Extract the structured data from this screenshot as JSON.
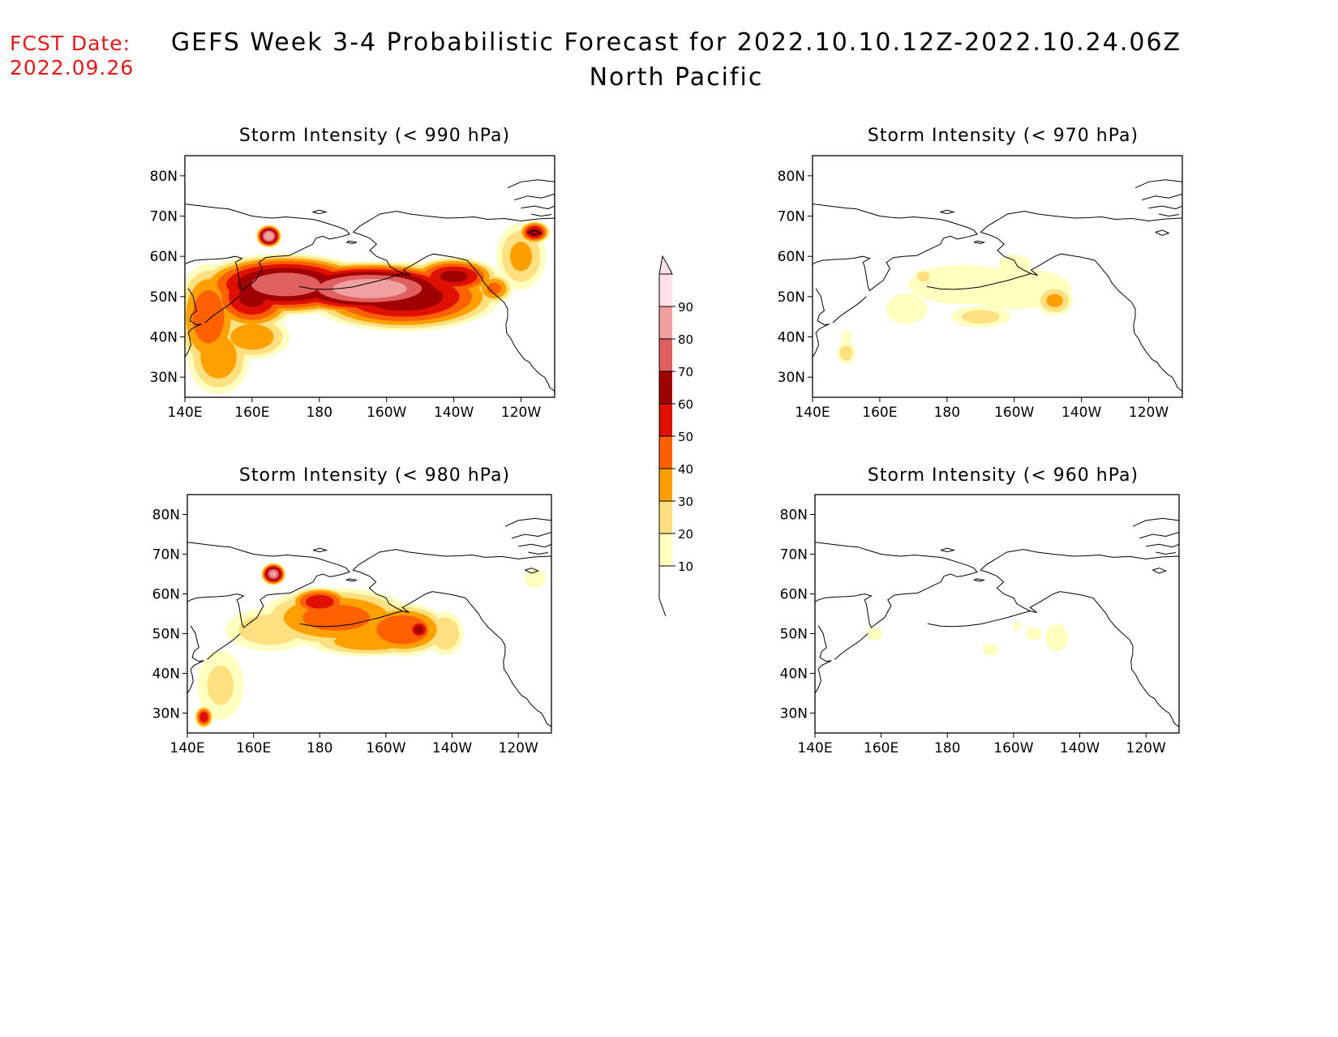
{
  "fcst_label": "FCST Date:",
  "fcst_date": "2022.09.26",
  "title": "GEFS Week 3-4 Probabilistic Forecast for 2022.10.10.12Z-2022.10.24.06Z",
  "subtitle": "North Pacific",
  "lat_ticks": [
    "80N",
    "70N",
    "60N",
    "50N",
    "40N",
    "30N"
  ],
  "lon_ticks": [
    "140E",
    "160E",
    "180",
    "160W",
    "140W",
    "120W"
  ],
  "panels": [
    {
      "title": "Storm Intensity (< 990 hPa)",
      "level": "990"
    },
    {
      "title": "Storm Intensity (< 970 hPa)",
      "level": "970"
    },
    {
      "title": "Storm Intensity (< 980 hPa)",
      "level": "980"
    },
    {
      "title": "Storm Intensity (< 960 hPa)",
      "level": "960"
    }
  ],
  "colorbar": {
    "levels": [
      "10",
      "20",
      "30",
      "40",
      "50",
      "60",
      "70",
      "80",
      "90"
    ],
    "colors": [
      "#ffffc0",
      "#ffe080",
      "#ffa000",
      "#ff6000",
      "#e01000",
      "#a00000",
      "#e06060",
      "#f0a0a0",
      "#ffe0e8"
    ]
  },
  "map_data": {
    "extent": {
      "lon": [
        140,
        250
      ],
      "lat": [
        25,
        85
      ]
    },
    "colormap": [
      {
        "min": 10,
        "color": "#ffffc0"
      },
      {
        "min": 20,
        "color": "#ffe080"
      },
      {
        "min": 30,
        "color": "#ffa000"
      },
      {
        "min": 40,
        "color": "#ff6000"
      },
      {
        "min": 50,
        "color": "#e01000"
      },
      {
        "min": 60,
        "color": "#a00000"
      },
      {
        "min": 70,
        "color": "#e06060"
      },
      {
        "min": 80,
        "color": "#f0a0a0"
      },
      {
        "min": 90,
        "color": "#ffe0e8"
      }
    ],
    "fields": {
      "990": [
        {
          "lon": 195,
          "lat": 52,
          "rx": 32,
          "ry": 7,
          "v": 85
        },
        {
          "lon": 170,
          "lat": 53,
          "rx": 28,
          "ry": 8,
          "v": 75
        },
        {
          "lon": 205,
          "lat": 50,
          "rx": 30,
          "ry": 9,
          "v": 65
        },
        {
          "lon": 160,
          "lat": 50,
          "rx": 14,
          "ry": 9,
          "v": 60
        },
        {
          "lon": 147,
          "lat": 45,
          "rx": 10,
          "ry": 14,
          "v": 45
        },
        {
          "lon": 150,
          "lat": 35,
          "rx": 10,
          "ry": 10,
          "v": 35
        },
        {
          "lon": 160,
          "lat": 40,
          "rx": 12,
          "ry": 6,
          "v": 35
        },
        {
          "lon": 240,
          "lat": 60,
          "rx": 8,
          "ry": 9,
          "v": 30
        },
        {
          "lon": 165,
          "lat": 65,
          "rx": 4,
          "ry": 3,
          "v": 85
        },
        {
          "lon": 220,
          "lat": 55,
          "rx": 14,
          "ry": 5,
          "v": 60
        },
        {
          "lon": 244,
          "lat": 66,
          "rx": 5,
          "ry": 3,
          "v": 60
        },
        {
          "lon": 232,
          "lat": 52,
          "rx": 6,
          "ry": 4,
          "v": 40
        }
      ],
      "970": [
        {
          "lon": 185,
          "lat": 53,
          "rx": 20,
          "ry": 6,
          "v": 15
        },
        {
          "lon": 200,
          "lat": 52,
          "rx": 20,
          "ry": 6,
          "v": 18
        },
        {
          "lon": 168,
          "lat": 47,
          "rx": 8,
          "ry": 5,
          "v": 12
        },
        {
          "lon": 190,
          "lat": 45,
          "rx": 10,
          "ry": 3,
          "v": 22
        },
        {
          "lon": 212,
          "lat": 49,
          "rx": 6,
          "ry": 4,
          "v": 30
        },
        {
          "lon": 150,
          "lat": 36,
          "rx": 3,
          "ry": 3,
          "v": 25
        },
        {
          "lon": 150,
          "lat": 40,
          "rx": 2,
          "ry": 2,
          "v": 14
        },
        {
          "lon": 200,
          "lat": 58,
          "rx": 6,
          "ry": 3,
          "v": 14
        },
        {
          "lon": 173,
          "lat": 55,
          "rx": 3,
          "ry": 2,
          "v": 25
        }
      ],
      "980": [
        {
          "lon": 185,
          "lat": 54,
          "rx": 25,
          "ry": 8,
          "v": 42
        },
        {
          "lon": 205,
          "lat": 51,
          "rx": 15,
          "ry": 7,
          "v": 48
        },
        {
          "lon": 180,
          "lat": 58,
          "rx": 10,
          "ry": 4,
          "v": 55
        },
        {
          "lon": 165,
          "lat": 51,
          "rx": 15,
          "ry": 6,
          "v": 25
        },
        {
          "lon": 150,
          "lat": 37,
          "rx": 8,
          "ry": 10,
          "v": 20
        },
        {
          "lon": 145,
          "lat": 29,
          "rx": 3,
          "ry": 3,
          "v": 55
        },
        {
          "lon": 166,
          "lat": 65,
          "rx": 4,
          "ry": 3,
          "v": 80
        },
        {
          "lon": 195,
          "lat": 48,
          "rx": 20,
          "ry": 4,
          "v": 35
        },
        {
          "lon": 245,
          "lat": 64,
          "rx": 4,
          "ry": 3,
          "v": 14
        },
        {
          "lon": 218,
          "lat": 50,
          "rx": 6,
          "ry": 6,
          "v": 28
        },
        {
          "lon": 210,
          "lat": 51,
          "rx": 4,
          "ry": 3,
          "v": 62
        }
      ],
      "960": [
        {
          "lon": 158,
          "lat": 50,
          "rx": 3,
          "ry": 2,
          "v": 13
        },
        {
          "lon": 193,
          "lat": 46,
          "rx": 3,
          "ry": 2,
          "v": 13
        },
        {
          "lon": 206,
          "lat": 50,
          "rx": 3,
          "ry": 2,
          "v": 14
        },
        {
          "lon": 213,
          "lat": 49,
          "rx": 4,
          "ry": 4,
          "v": 18
        },
        {
          "lon": 201,
          "lat": 52,
          "rx": 1.5,
          "ry": 1.5,
          "v": 12
        }
      ]
    }
  }
}
